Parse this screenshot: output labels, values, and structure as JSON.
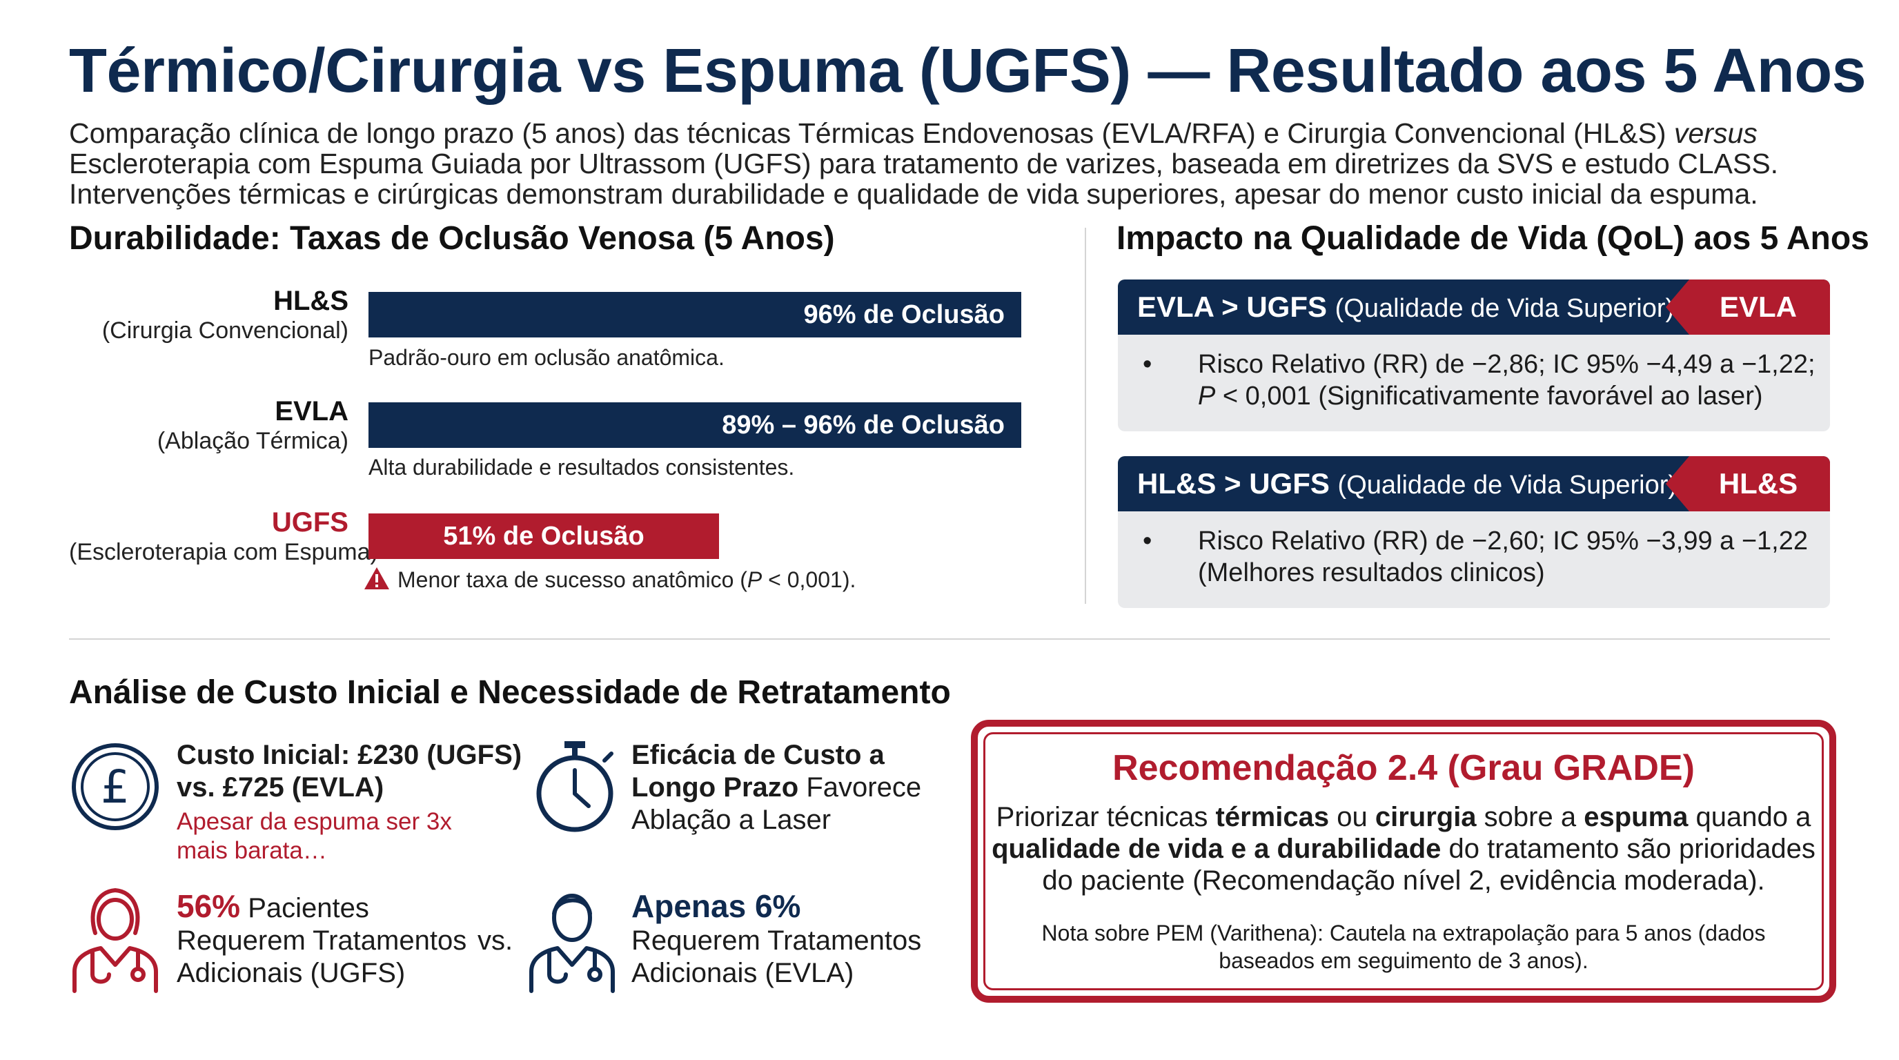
{
  "header": {
    "title": "Térmico/Cirurgia vs Espuma (UGFS) — Resultado aos 5 Anos",
    "subtitle_line1_a": "Comparação clínica de longo prazo (5 anos) das técnicas Térmicas Endovenosas (EVLA/RFA) e Cirurgia Convencional (HL&S) ",
    "subtitle_line1_b": "versus",
    "subtitle_line2": "Escleroterapia com Espuma Guiada por Ultrassom (UGFS) para tratamento de varizes, baseada em diretrizes da SVS e estudo CLASS.",
    "subtitle_line3": "Intervenções térmicas e cirúrgicas demonstram durabilidade e qualidade de vida superiores, apesar do menor custo inicial da espuma."
  },
  "durability": {
    "heading": "Durabilidade: Taxas de Oclusão Venosa (5 Anos)",
    "rows": [
      {
        "name": "HL&S",
        "desc": "(Cirurgia Convencional)",
        "bar_label": "96% de Oclusão",
        "note": "Padrão-ouro em oclusão anatômica.",
        "occlusion_pct": 96
      },
      {
        "name": "EVLA",
        "desc": "(Ablação Térmica)",
        "bar_label": "89% – 96% de Oclusão",
        "note": "Alta durabilidade e resultados consistentes.",
        "occlusion_pct": 96
      },
      {
        "name": "UGFS",
        "desc": "(Escleroterapia com Espuma)",
        "bar_label": "51% de Oclusão",
        "note_a": "Menor taxa de sucesso anatômico (",
        "note_p": "P",
        "note_b": " < 0,001).",
        "occlusion_pct": 51
      }
    ]
  },
  "qol": {
    "heading": "Impacto na Qualidade de Vida (QoL) aos 5 Anos",
    "cards": [
      {
        "head_main": "EVLA > UGFS",
        "head_sub": "(Qualidade de Vida Superior)",
        "tag": "EVLA",
        "bullet": "•",
        "line1": "Risco Relativo (RR) de −2,86; IC 95% −4,49 a −1,22;",
        "line2_p": "P",
        "line2_rest": " < 0,001 (Significativamente favorável ao laser)"
      },
      {
        "head_main": "HL&S > UGFS",
        "head_sub": "(Qualidade de Vida Superior)",
        "tag": "HL&S",
        "bullet": "•",
        "line1": "Risco Relativo (RR) de −2,60; IC 95% −3,99 a −1,22",
        "line2_rest": "(Melhores resultados clinicos)"
      }
    ]
  },
  "cost": {
    "heading": "Análise de Custo Inicial e Necessidade de Retratamento",
    "initial_cost_l1": "Custo Inicial: £230 (UGFS)",
    "initial_cost_l2": "vs. £725 (EVLA)",
    "initial_cost_note_l1": "Apesar da espuma ser 3x",
    "initial_cost_note_l2": "mais barata…",
    "efficacy_l1": "Eficácia de Custo a",
    "efficacy_l2_bold": "Longo Prazo",
    "efficacy_l2_rest": " Favorece",
    "efficacy_l3": "Ablação a Laser",
    "ugfs_pct": "56%",
    "ugfs_l1_rest": " Pacientes",
    "ugfs_l2": "Requerem Tratamentos",
    "ugfs_l3": "Adicionais (UGFS)",
    "vs": "vs.",
    "evla_pct": "Apenas 6%",
    "evla_l2": "Requerem Tratamentos",
    "evla_l3": "Adicionais (EVLA)"
  },
  "recommendation": {
    "title": "Recomendação 2.4 (Grau GRADE)",
    "l1_a": "Priorizar técnicas ",
    "l1_b": "térmicas",
    "l1_c": " ou ",
    "l1_d": "cirurgia",
    "l1_e": " sobre a ",
    "l1_f": "espuma",
    "l1_g": " quando a",
    "l2_a": "qualidade de vida e a durabilidade",
    "l2_b": " do tratamento são prioridades",
    "l3": "do paciente (Recomendação nível 2, evidência moderada).",
    "note_l1": "Nota sobre PEM (Varithena): Cautela na extrapolação para 5 anos (dados",
    "note_l2": "baseados em seguimento de 3 anos)."
  },
  "colors": {
    "navy": "#0f2a4f",
    "red": "#b11c2e",
    "card_bg": "#e9eaec"
  },
  "icons": [
    "pound-icon",
    "stopwatch-icon",
    "female-doctor-icon",
    "male-doctor-icon",
    "warning-icon"
  ]
}
